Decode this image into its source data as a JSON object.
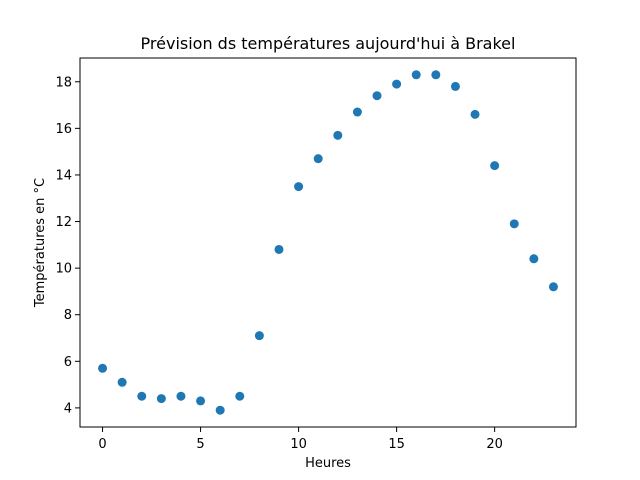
{
  "chart_data": {
    "type": "scatter",
    "title": "Prévision ds températures aujourd'hui à Brakel",
    "xlabel": "Heures",
    "ylabel": "Températures en °C",
    "xlim": [
      -1.15,
      24.15
    ],
    "ylim": [
      3.18,
      19.02
    ],
    "x_ticks": [
      0,
      5,
      10,
      15,
      20
    ],
    "y_ticks": [
      4,
      6,
      8,
      10,
      12,
      14,
      16,
      18
    ],
    "grid": false,
    "marker_color": "#1f77b4",
    "series": [
      {
        "x": [
          0,
          1,
          2,
          3,
          4,
          5,
          6,
          7,
          8,
          9,
          10,
          11,
          12,
          13,
          14,
          15,
          16,
          17,
          18,
          19,
          20,
          21,
          22,
          23
        ],
        "y": [
          5.7,
          5.1,
          4.5,
          4.4,
          4.5,
          4.3,
          3.9,
          4.5,
          7.1,
          10.8,
          13.5,
          14.7,
          15.7,
          16.7,
          17.4,
          17.9,
          18.3,
          18.3,
          17.8,
          16.6,
          14.4,
          11.9,
          10.4,
          9.2
        ]
      }
    ]
  }
}
